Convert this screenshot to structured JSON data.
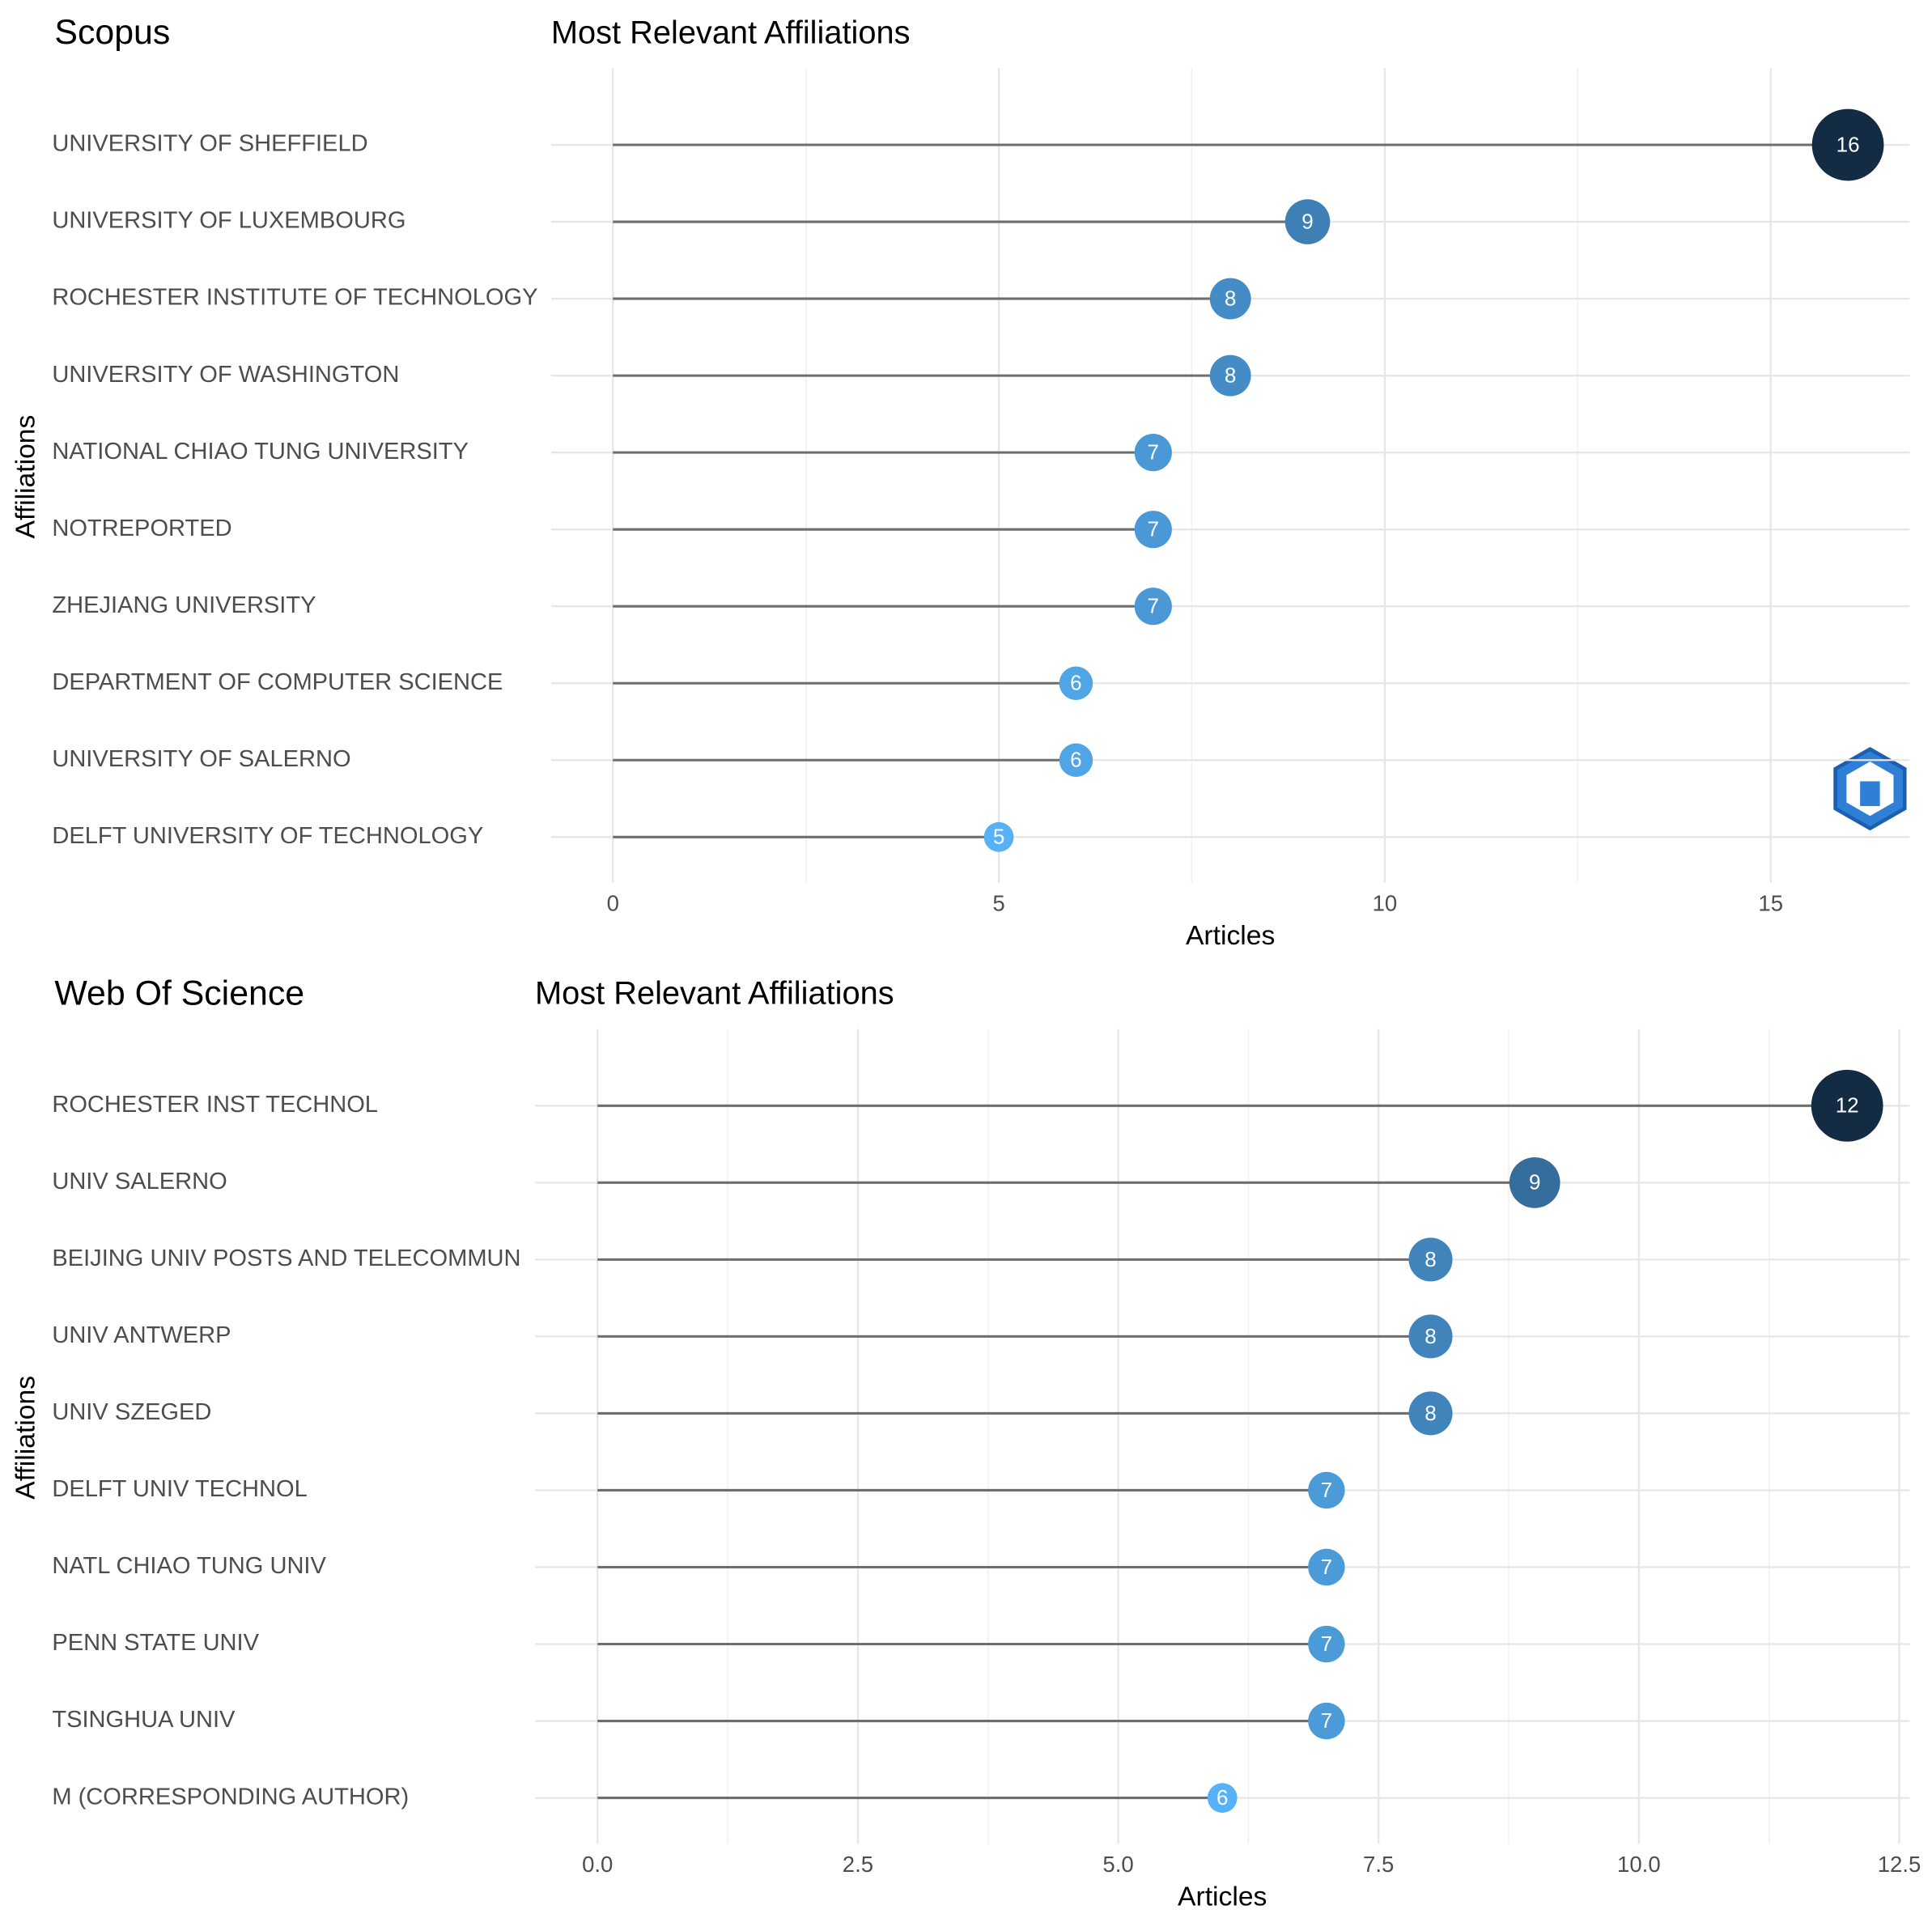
{
  "chart_data": [
    {
      "type": "lollipop",
      "panel_label": "Scopus",
      "title": "Most Relevant Affiliations",
      "x_label": "Articles",
      "y_label": "Affiliations",
      "categories": [
        "UNIVERSITY OF SHEFFIELD",
        "UNIVERSITY OF LUXEMBOURG",
        "ROCHESTER INSTITUTE OF TECHNOLOGY",
        "UNIVERSITY OF WASHINGTON",
        "NATIONAL CHIAO TUNG UNIVERSITY",
        "NOTREPORTED",
        "ZHEJIANG UNIVERSITY",
        "DEPARTMENT OF COMPUTER SCIENCE",
        "UNIVERSITY OF SALERNO",
        "DELFT UNIVERSITY OF TECHNOLOGY"
      ],
      "values": [
        16,
        9,
        8,
        8,
        7,
        7,
        7,
        6,
        6,
        5
      ],
      "xlim": [
        -0.8,
        16.8
      ],
      "xticks": [
        0,
        5,
        10,
        15
      ],
      "color_scale": [
        "#56B1F7",
        "#132B43"
      ],
      "grid": true
    },
    {
      "type": "lollipop",
      "panel_label": "Web Of Science",
      "title": "Most Relevant Affiliations",
      "x_label": "Articles",
      "y_label": "Affiliations",
      "categories": [
        "ROCHESTER INST TECHNOL",
        "UNIV SALERNO",
        "BEIJING UNIV POSTS AND TELECOMMUN",
        "UNIV ANTWERP",
        "UNIV SZEGED",
        "DELFT UNIV TECHNOL",
        "NATL CHIAO TUNG UNIV",
        "PENN STATE UNIV",
        "TSINGHUA UNIV",
        "M (CORRESPONDING AUTHOR)"
      ],
      "values": [
        12,
        9,
        8,
        8,
        8,
        7,
        7,
        7,
        7,
        6
      ],
      "xlim": [
        -0.6,
        12.6
      ],
      "xticks": [
        {
          "value": 0,
          "label": "0.0"
        },
        2.5,
        {
          "value": 5,
          "label": "5.0"
        },
        7.5,
        {
          "value": 10,
          "label": "10.0"
        },
        12.5
      ],
      "color_scale": [
        "#56B1F7",
        "#132B43"
      ],
      "grid": true
    }
  ]
}
